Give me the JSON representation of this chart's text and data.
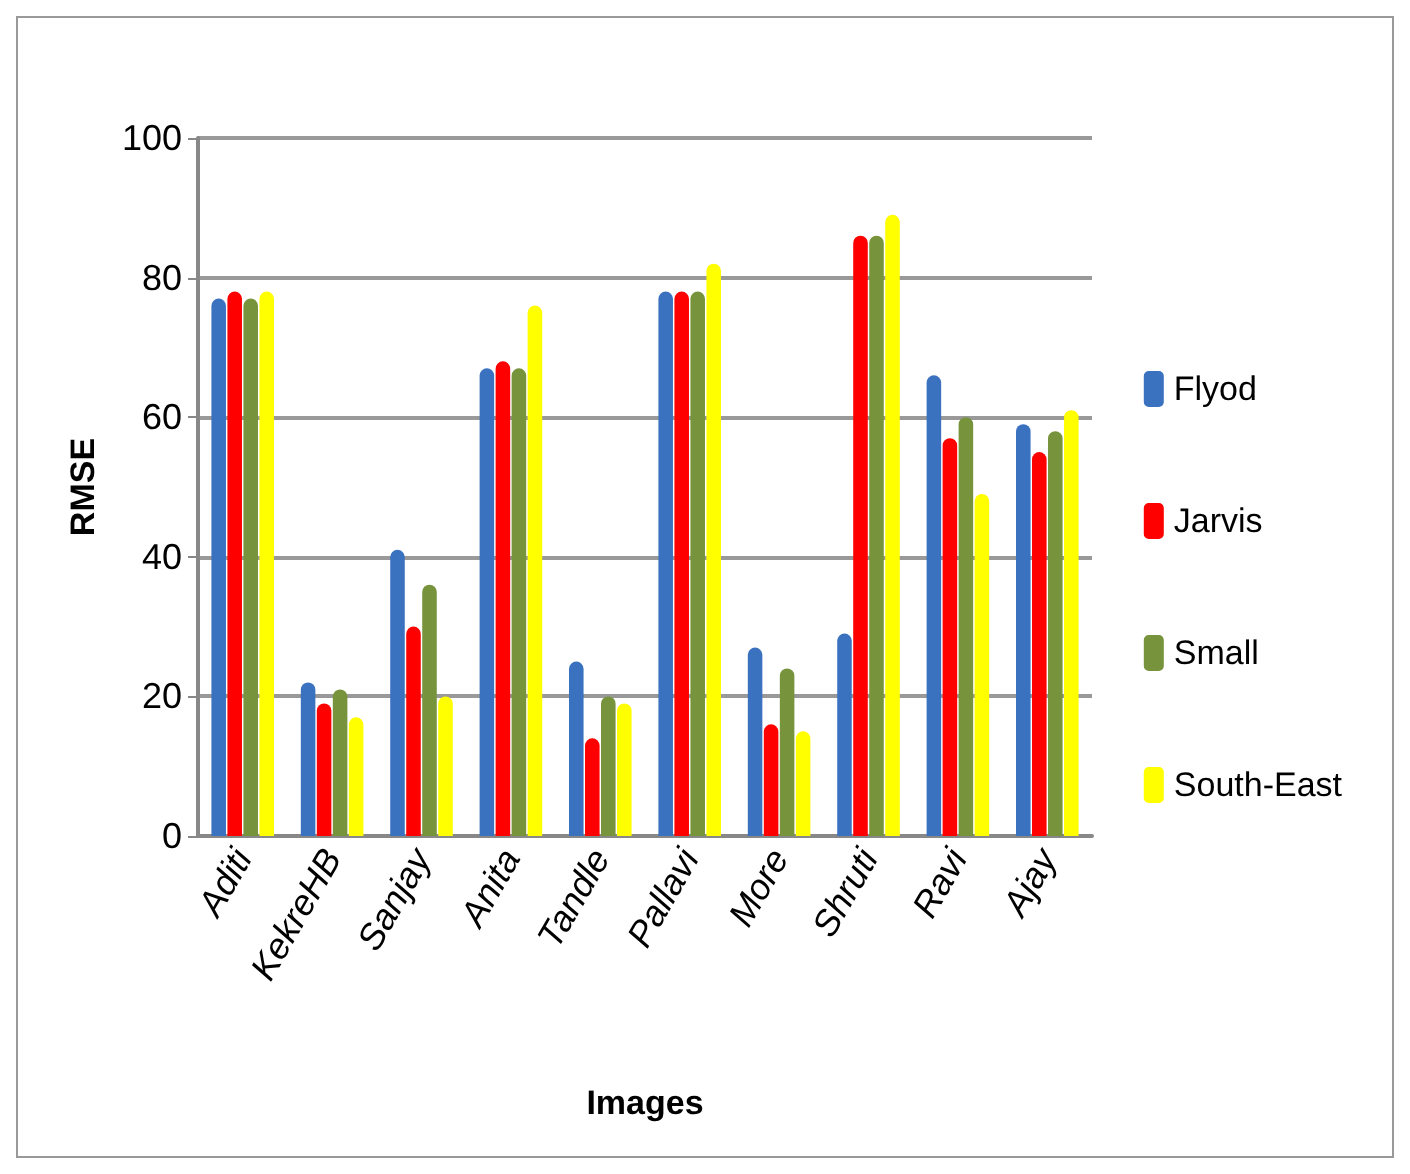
{
  "chart_data": {
    "type": "bar",
    "xlabel": "Images",
    "ylabel": "RMSE",
    "categories": [
      "Aditi",
      "KekreHB",
      "Sanjay",
      "Anita",
      "Tandle",
      "Pallavi",
      "More",
      "Shruti",
      "Ravi",
      "Ajay"
    ],
    "series": [
      {
        "name": "Flyod",
        "color": "#3a72c0",
        "values": [
          77,
          22,
          41,
          67,
          25,
          78,
          27,
          29,
          66,
          59
        ]
      },
      {
        "name": "Jarvis",
        "color": "#ff0000",
        "values": [
          78,
          19,
          30,
          68,
          14,
          78,
          16,
          86,
          57,
          55
        ]
      },
      {
        "name": "Small",
        "color": "#77933c",
        "values": [
          77,
          21,
          36,
          67,
          20,
          78,
          24,
          86,
          60,
          58
        ]
      },
      {
        "name": "South-East",
        "color": "#ffff00",
        "values": [
          78,
          17,
          20,
          76,
          19,
          82,
          15,
          89,
          49,
          61
        ]
      }
    ],
    "ylim": [
      0,
      100
    ],
    "yticks": [
      0,
      20,
      40,
      60,
      80,
      100
    ],
    "grid": "y",
    "legend": "right"
  }
}
